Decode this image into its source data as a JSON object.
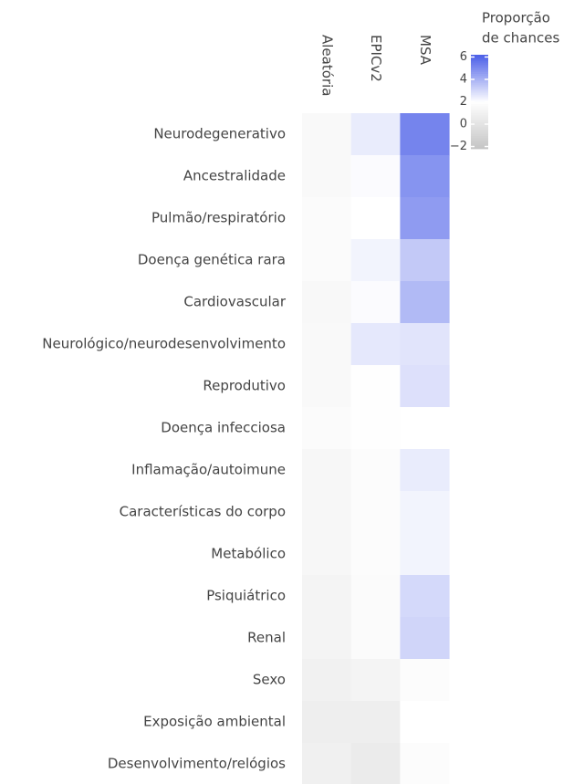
{
  "chart_data": {
    "type": "heatmap",
    "x": [
      "Aleatória",
      "EPICv2",
      "MSA"
    ],
    "y": [
      "Neurodegenerativo",
      "Ancestralidade",
      "Pulmão/respiratório",
      "Doença genética rara",
      "Cardiovascular",
      "Neurológico/neurodesenvolvimento",
      "Reprodutivo",
      "Doença infecciosa",
      "Inflamação/autoimune",
      "Características do corpo",
      "Metabólico",
      "Psiquiátrico",
      "Renal",
      "Sexo",
      "Exposição ambiental",
      "Desenvolvimento/relógios"
    ],
    "values": [
      [
        1.6,
        2.5,
        5.2
      ],
      [
        1.6,
        2.1,
        4.8
      ],
      [
        1.7,
        2.0,
        4.6
      ],
      [
        1.7,
        2.3,
        3.4
      ],
      [
        1.5,
        2.1,
        3.8
      ],
      [
        1.6,
        2.6,
        2.7
      ],
      [
        1.6,
        1.9,
        2.8
      ],
      [
        1.7,
        1.9,
        2.0
      ],
      [
        1.4,
        1.8,
        2.5
      ],
      [
        1.4,
        1.8,
        2.3
      ],
      [
        1.4,
        1.8,
        2.3
      ],
      [
        1.2,
        1.7,
        3.0
      ],
      [
        1.2,
        1.7,
        3.1
      ],
      [
        1.0,
        1.2,
        1.8
      ],
      [
        0.8,
        0.8,
        2.0
      ],
      [
        0.9,
        0.6,
        1.8
      ]
    ],
    "colorbar_title": [
      "Proporção",
      "de chances"
    ],
    "clim": [
      -2.2,
      6.2
    ],
    "cticks": [
      6,
      4,
      2,
      0,
      {
        "value": -2,
        "label": "−2"
      }
    ],
    "colors": [
      "#c4c4c4",
      "#ffffff",
      "#4a5ee8"
    ]
  }
}
